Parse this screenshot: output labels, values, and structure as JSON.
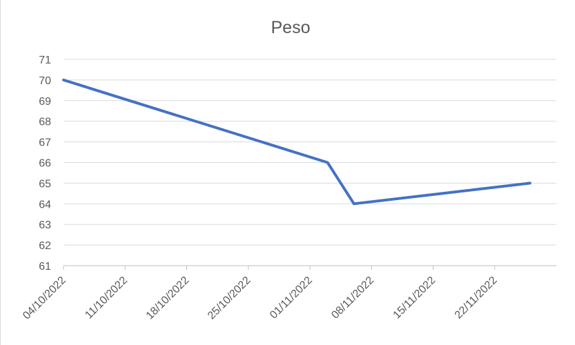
{
  "chart_data": {
    "type": "line",
    "title": "Peso",
    "xlabel": "",
    "ylabel": "",
    "ylim": [
      61,
      71
    ],
    "y_ticks": [
      61,
      62,
      63,
      64,
      65,
      66,
      67,
      68,
      69,
      70,
      71
    ],
    "x_tick_labels": [
      "04/10/2022",
      "11/10/2022",
      "18/10/2022",
      "25/10/2022",
      "01/11/2022",
      "08/11/2022",
      "15/11/2022",
      "22/11/2022"
    ],
    "x_range": [
      "04/10/2022",
      "29/11/2022"
    ],
    "grid": true,
    "legend": "none",
    "series": [
      {
        "color": "#4472c4",
        "points": [
          {
            "x": "04/10/2022",
            "y": 70
          },
          {
            "x": "03/11/2022",
            "y": 66
          },
          {
            "x": "06/11/2022",
            "y": 64
          },
          {
            "x": "26/11/2022",
            "y": 65
          }
        ]
      }
    ]
  }
}
